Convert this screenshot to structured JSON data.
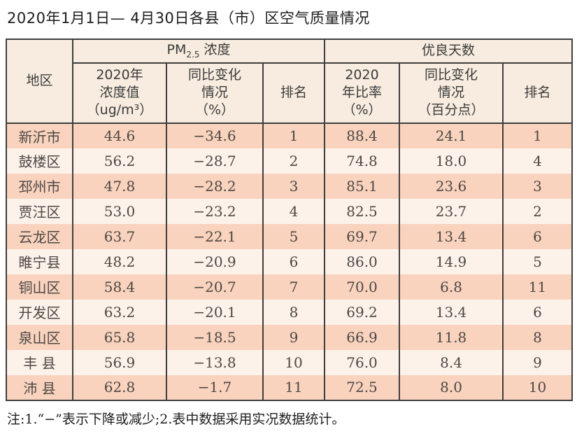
{
  "title": "2020年1月1日— 4月30日各县（市）区空气质量情况",
  "colors": {
    "header_bg": "#f7ecdf",
    "row_odd_bg": "#f9d3be",
    "row_even_bg": "#fdf2ea",
    "border": "#3f3f3f"
  },
  "table": {
    "region_header": "地区",
    "pm_group": {
      "prefix": "PM",
      "sub": "2.5",
      "suffix": " 浓度"
    },
    "good_group": "优良天数",
    "sub_headers": {
      "pm_value": "2020年\n浓度值\n（ug/m³）",
      "pm_change": "同比变化\n情况\n（%）",
      "pm_rank": "排名",
      "good_ratio": "2020\n年比率\n（%）",
      "good_change": "同比变化\n情况\n（百分点）",
      "good_rank": "排名"
    },
    "rows": [
      [
        "新沂市",
        "44.6",
        "−34.6",
        "1",
        "88.4",
        "24.1",
        "1"
      ],
      [
        "鼓楼区",
        "56.2",
        "−28.7",
        "2",
        "74.8",
        "18.0",
        "4"
      ],
      [
        "邳州市",
        "47.8",
        "−28.2",
        "3",
        "85.1",
        "23.6",
        "3"
      ],
      [
        "贾汪区",
        "53.0",
        "−23.2",
        "4",
        "82.5",
        "23.7",
        "2"
      ],
      [
        "云龙区",
        "63.7",
        "−22.1",
        "5",
        "69.7",
        "13.4",
        "6"
      ],
      [
        "睢宁县",
        "48.2",
        "−20.9",
        "6",
        "86.0",
        "14.9",
        "5"
      ],
      [
        "铜山区",
        "58.4",
        "−20.7",
        "7",
        "70.0",
        "6.8",
        "11"
      ],
      [
        "开发区",
        "63.2",
        "−20.1",
        "8",
        "69.2",
        "13.4",
        "6"
      ],
      [
        "泉山区",
        "65.8",
        "−18.5",
        "9",
        "66.9",
        "11.8",
        "8"
      ],
      [
        "丰 县",
        "56.9",
        "−13.8",
        "10",
        "76.0",
        "8.4",
        "9"
      ],
      [
        "沛 县",
        "62.8",
        "−1.7",
        "11",
        "72.5",
        "8.0",
        "10"
      ]
    ]
  },
  "footnote": "注:1.“−”表示下降或减少;2.表中数据采用实况数据统计。"
}
